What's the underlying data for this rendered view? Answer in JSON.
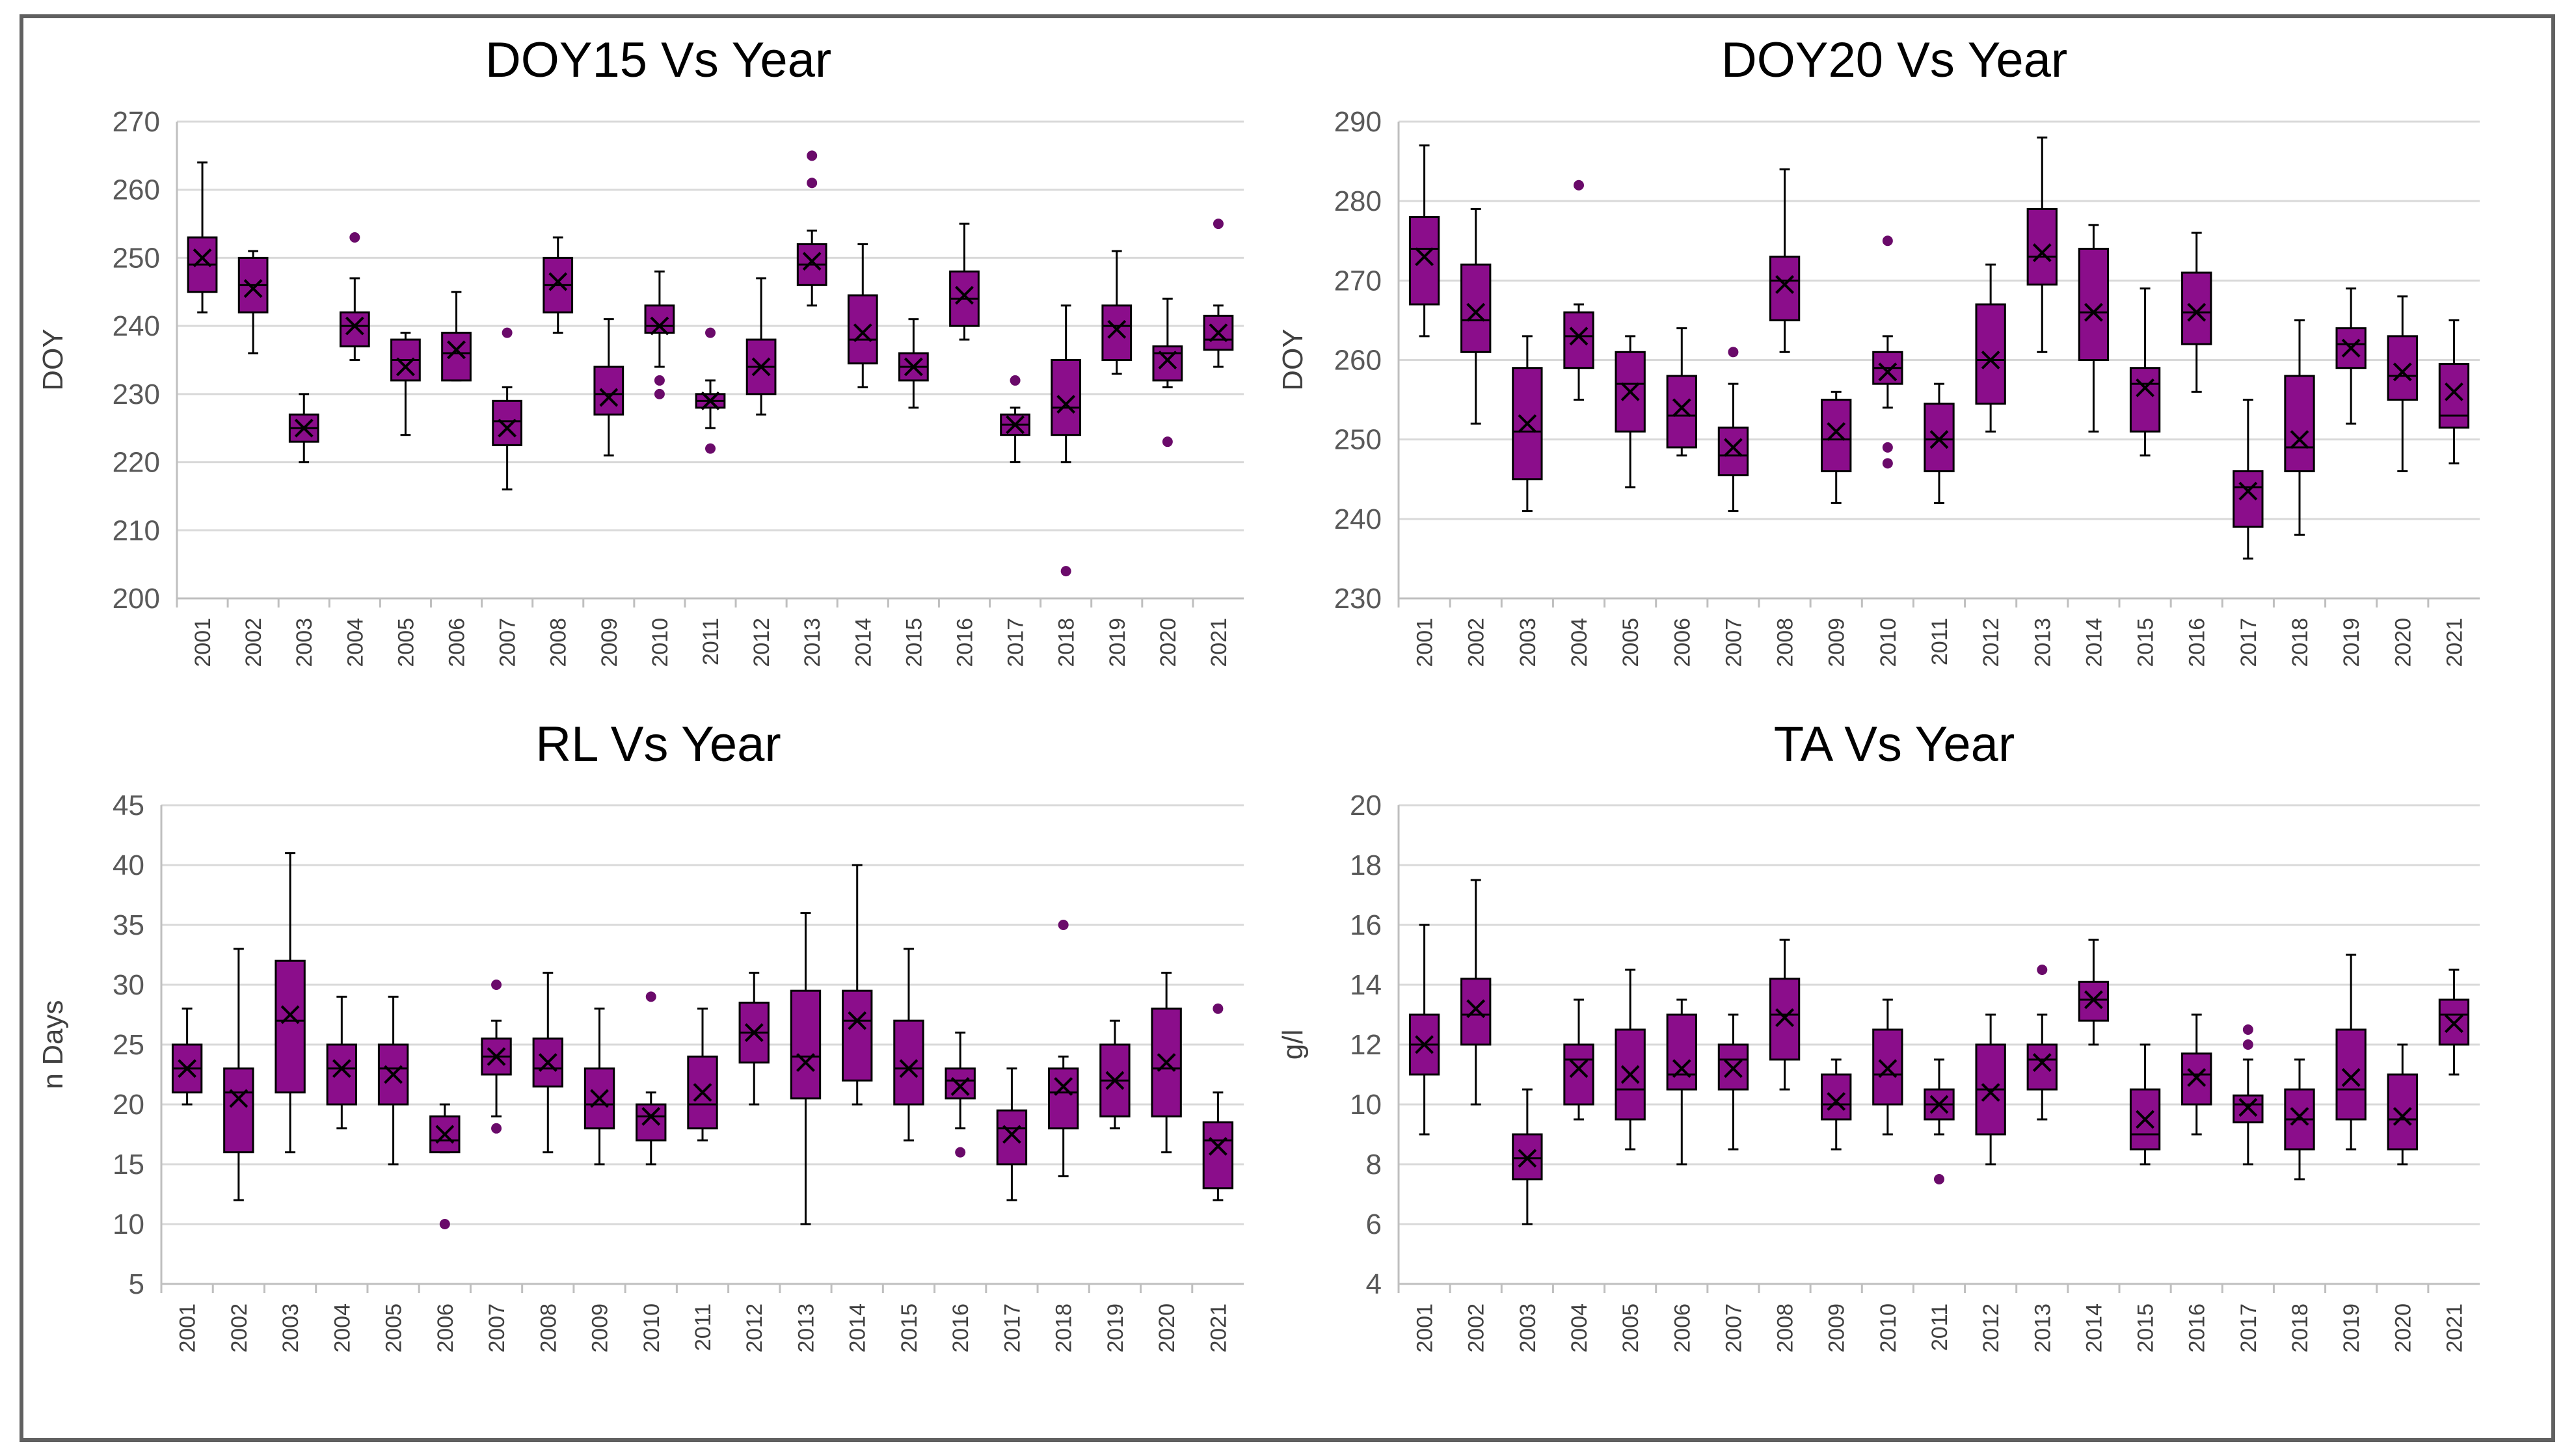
{
  "chart_data": [
    {
      "type": "box",
      "title": "DOY15 Vs Year",
      "xlabel": "",
      "ylabel": "DOY",
      "ylim": [
        200,
        270
      ],
      "yticks": [
        200,
        210,
        220,
        230,
        240,
        250,
        260,
        270
      ],
      "grid": true,
      "color": "#8b0d8b",
      "categories": [
        "2001",
        "2002",
        "2003",
        "2004",
        "2005",
        "2006",
        "2007",
        "2008",
        "2009",
        "2010",
        "2011",
        "2012",
        "2013",
        "2014",
        "2015",
        "2016",
        "2017",
        "2018",
        "2019",
        "2020",
        "2021"
      ],
      "boxes": [
        {
          "min": 242,
          "q1": 245,
          "median": 249,
          "q3": 253,
          "max": 264,
          "mean": 250,
          "outliers": []
        },
        {
          "min": 236,
          "q1": 242,
          "median": 246,
          "q3": 250,
          "max": 251,
          "mean": 245.5,
          "outliers": []
        },
        {
          "min": 220,
          "q1": 223,
          "median": 225,
          "q3": 227,
          "max": 230,
          "mean": 225,
          "outliers": []
        },
        {
          "min": 235,
          "q1": 237,
          "median": 240,
          "q3": 242,
          "max": 247,
          "mean": 240,
          "outliers": [
            253
          ]
        },
        {
          "min": 224,
          "q1": 232,
          "median": 235,
          "q3": 238,
          "max": 239,
          "mean": 234,
          "outliers": []
        },
        {
          "min": 232,
          "q1": 232,
          "median": 236,
          "q3": 239,
          "max": 245,
          "mean": 236.5,
          "outliers": []
        },
        {
          "min": 216,
          "q1": 222.5,
          "median": 226,
          "q3": 229,
          "max": 231,
          "mean": 225,
          "outliers": [
            239
          ]
        },
        {
          "min": 239,
          "q1": 242,
          "median": 246,
          "q3": 250,
          "max": 253,
          "mean": 246.5,
          "outliers": []
        },
        {
          "min": 221,
          "q1": 227,
          "median": 230,
          "q3": 234,
          "max": 241,
          "mean": 229.5,
          "outliers": []
        },
        {
          "min": 234,
          "q1": 239,
          "median": 240,
          "q3": 243,
          "max": 248,
          "mean": 240,
          "outliers": [
            232,
            230
          ]
        },
        {
          "min": 225,
          "q1": 228,
          "median": 229,
          "q3": 230,
          "max": 232,
          "mean": 229,
          "outliers": [
            239,
            222
          ]
        },
        {
          "min": 227,
          "q1": 230,
          "median": 234,
          "q3": 238,
          "max": 247,
          "mean": 234,
          "outliers": []
        },
        {
          "min": 243,
          "q1": 246,
          "median": 249,
          "q3": 252,
          "max": 254,
          "mean": 249.5,
          "outliers": [
            265,
            261
          ]
        },
        {
          "min": 231,
          "q1": 234.5,
          "median": 238,
          "q3": 244.5,
          "max": 252,
          "mean": 239,
          "outliers": []
        },
        {
          "min": 228,
          "q1": 232,
          "median": 234,
          "q3": 236,
          "max": 241,
          "mean": 234,
          "outliers": []
        },
        {
          "min": 238,
          "q1": 240,
          "median": 244,
          "q3": 248,
          "max": 255,
          "mean": 244.5,
          "outliers": []
        },
        {
          "min": 220,
          "q1": 224,
          "median": 225.5,
          "q3": 227,
          "max": 228,
          "mean": 225.5,
          "outliers": [
            232
          ]
        },
        {
          "min": 220,
          "q1": 224,
          "median": 228,
          "q3": 235,
          "max": 243,
          "mean": 228.5,
          "outliers": [
            204
          ]
        },
        {
          "min": 233,
          "q1": 235,
          "median": 240,
          "q3": 243,
          "max": 251,
          "mean": 239.5,
          "outliers": []
        },
        {
          "min": 231,
          "q1": 232,
          "median": 236,
          "q3": 237,
          "max": 244,
          "mean": 235,
          "outliers": [
            223
          ]
        },
        {
          "min": 234,
          "q1": 236.5,
          "median": 238,
          "q3": 241.5,
          "max": 243,
          "mean": 239,
          "outliers": [
            255
          ]
        }
      ]
    },
    {
      "type": "box",
      "title": "DOY20 Vs Year",
      "xlabel": "",
      "ylabel": "DOY",
      "ylim": [
        230,
        290
      ],
      "yticks": [
        230,
        240,
        250,
        260,
        270,
        280,
        290
      ],
      "grid": true,
      "color": "#8b0d8b",
      "categories": [
        "2001",
        "2002",
        "2003",
        "2004",
        "2005",
        "2006",
        "2007",
        "2008",
        "2009",
        "2010",
        "2011",
        "2012",
        "2013",
        "2014",
        "2015",
        "2016",
        "2017",
        "2018",
        "2019",
        "2020",
        "2021"
      ],
      "boxes": [
        {
          "min": 263,
          "q1": 267,
          "median": 274,
          "q3": 278,
          "max": 287,
          "mean": 273,
          "outliers": []
        },
        {
          "min": 252,
          "q1": 261,
          "median": 265,
          "q3": 272,
          "max": 279,
          "mean": 266,
          "outliers": []
        },
        {
          "min": 241,
          "q1": 245,
          "median": 251,
          "q3": 259,
          "max": 263,
          "mean": 252,
          "outliers": []
        },
        {
          "min": 255,
          "q1": 259,
          "median": 263,
          "q3": 266,
          "max": 267,
          "mean": 263,
          "outliers": [
            282
          ]
        },
        {
          "min": 244,
          "q1": 251,
          "median": 257,
          "q3": 261,
          "max": 263,
          "mean": 256,
          "outliers": []
        },
        {
          "min": 248,
          "q1": 249,
          "median": 253,
          "q3": 258,
          "max": 264,
          "mean": 254,
          "outliers": []
        },
        {
          "min": 241,
          "q1": 245.5,
          "median": 248,
          "q3": 251.5,
          "max": 257,
          "mean": 249,
          "outliers": [
            261
          ]
        },
        {
          "min": 261,
          "q1": 265,
          "median": 270,
          "q3": 273,
          "max": 284,
          "mean": 269.5,
          "outliers": []
        },
        {
          "min": 242,
          "q1": 246,
          "median": 250,
          "q3": 255,
          "max": 256,
          "mean": 251,
          "outliers": []
        },
        {
          "min": 254,
          "q1": 257,
          "median": 259,
          "q3": 261,
          "max": 263,
          "mean": 258.5,
          "outliers": [
            275,
            249,
            247
          ]
        },
        {
          "min": 242,
          "q1": 246,
          "median": 250,
          "q3": 254.5,
          "max": 257,
          "mean": 250,
          "outliers": []
        },
        {
          "min": 251,
          "q1": 254.5,
          "median": 260,
          "q3": 267,
          "max": 272,
          "mean": 260,
          "outliers": []
        },
        {
          "min": 261,
          "q1": 269.5,
          "median": 273,
          "q3": 279,
          "max": 288,
          "mean": 273.5,
          "outliers": []
        },
        {
          "min": 251,
          "q1": 260,
          "median": 266,
          "q3": 274,
          "max": 277,
          "mean": 266,
          "outliers": []
        },
        {
          "min": 248,
          "q1": 251,
          "median": 257,
          "q3": 259,
          "max": 269,
          "mean": 256.5,
          "outliers": []
        },
        {
          "min": 256,
          "q1": 262,
          "median": 266,
          "q3": 271,
          "max": 276,
          "mean": 266,
          "outliers": []
        },
        {
          "min": 235,
          "q1": 239,
          "median": 244,
          "q3": 246,
          "max": 255,
          "mean": 243.5,
          "outliers": []
        },
        {
          "min": 238,
          "q1": 246,
          "median": 249,
          "q3": 258,
          "max": 265,
          "mean": 250,
          "outliers": []
        },
        {
          "min": 252,
          "q1": 259,
          "median": 262,
          "q3": 264,
          "max": 269,
          "mean": 261.5,
          "outliers": []
        },
        {
          "min": 246,
          "q1": 255,
          "median": 258,
          "q3": 263,
          "max": 268,
          "mean": 258.5,
          "outliers": []
        },
        {
          "min": 247,
          "q1": 251.5,
          "median": 253,
          "q3": 259.5,
          "max": 265,
          "mean": 256,
          "outliers": []
        }
      ]
    },
    {
      "type": "box",
      "title": "RL Vs Year",
      "xlabel": "",
      "ylabel": "n Days",
      "ylim": [
        5,
        45
      ],
      "yticks": [
        5,
        10,
        15,
        20,
        25,
        30,
        35,
        40,
        45
      ],
      "grid": true,
      "color": "#8b0d8b",
      "categories": [
        "2001",
        "2002",
        "2003",
        "2004",
        "2005",
        "2006",
        "2007",
        "2008",
        "2009",
        "2010",
        "2011",
        "2012",
        "2013",
        "2014",
        "2015",
        "2016",
        "2017",
        "2018",
        "2019",
        "2020",
        "2021"
      ],
      "boxes": [
        {
          "min": 20,
          "q1": 21,
          "median": 23,
          "q3": 25,
          "max": 28,
          "mean": 23,
          "outliers": []
        },
        {
          "min": 12,
          "q1": 16,
          "median": 21,
          "q3": 23,
          "max": 33,
          "mean": 20.5,
          "outliers": []
        },
        {
          "min": 16,
          "q1": 21,
          "median": 27,
          "q3": 32,
          "max": 41,
          "mean": 27.5,
          "outliers": []
        },
        {
          "min": 18,
          "q1": 20,
          "median": 23,
          "q3": 25,
          "max": 29,
          "mean": 23,
          "outliers": []
        },
        {
          "min": 15,
          "q1": 20,
          "median": 23,
          "q3": 25,
          "max": 29,
          "mean": 22.5,
          "outliers": []
        },
        {
          "min": 16,
          "q1": 16,
          "median": 17,
          "q3": 19,
          "max": 20,
          "mean": 17.5,
          "outliers": [
            10
          ]
        },
        {
          "min": 19,
          "q1": 22.5,
          "median": 24,
          "q3": 25.5,
          "max": 27,
          "mean": 24,
          "outliers": [
            30,
            18
          ]
        },
        {
          "min": 16,
          "q1": 21.5,
          "median": 23,
          "q3": 25.5,
          "max": 31,
          "mean": 23.5,
          "outliers": []
        },
        {
          "min": 15,
          "q1": 18,
          "median": 20,
          "q3": 23,
          "max": 28,
          "mean": 20.5,
          "outliers": []
        },
        {
          "min": 15,
          "q1": 17,
          "median": 19,
          "q3": 20,
          "max": 21,
          "mean": 19,
          "outliers": [
            29
          ]
        },
        {
          "min": 17,
          "q1": 18,
          "median": 20,
          "q3": 24,
          "max": 28,
          "mean": 21,
          "outliers": []
        },
        {
          "min": 20,
          "q1": 23.5,
          "median": 26,
          "q3": 28.5,
          "max": 31,
          "mean": 26,
          "outliers": []
        },
        {
          "min": 10,
          "q1": 20.5,
          "median": 24,
          "q3": 29.5,
          "max": 36,
          "mean": 23.5,
          "outliers": []
        },
        {
          "min": 20,
          "q1": 22,
          "median": 27,
          "q3": 29.5,
          "max": 40,
          "mean": 27,
          "outliers": []
        },
        {
          "min": 17,
          "q1": 20,
          "median": 23,
          "q3": 27,
          "max": 33,
          "mean": 23,
          "outliers": []
        },
        {
          "min": 18,
          "q1": 20.5,
          "median": 22,
          "q3": 23,
          "max": 26,
          "mean": 21.5,
          "outliers": [
            16
          ]
        },
        {
          "min": 12,
          "q1": 15,
          "median": 18,
          "q3": 19.5,
          "max": 23,
          "mean": 17.5,
          "outliers": []
        },
        {
          "min": 14,
          "q1": 18,
          "median": 21,
          "q3": 23,
          "max": 24,
          "mean": 21.5,
          "outliers": [
            35
          ]
        },
        {
          "min": 18,
          "q1": 19,
          "median": 22,
          "q3": 25,
          "max": 27,
          "mean": 22,
          "outliers": []
        },
        {
          "min": 16,
          "q1": 19,
          "median": 23,
          "q3": 28,
          "max": 31,
          "mean": 23.5,
          "outliers": []
        },
        {
          "min": 12,
          "q1": 13,
          "median": 17,
          "q3": 18.5,
          "max": 21,
          "mean": 16.5,
          "outliers": [
            28
          ]
        }
      ]
    },
    {
      "type": "box",
      "title": "TA Vs Year",
      "xlabel": "",
      "ylabel": "g/l",
      "ylim": [
        4,
        20
      ],
      "yticks": [
        4,
        6,
        8,
        10,
        12,
        14,
        16,
        18,
        20
      ],
      "grid": true,
      "color": "#8b0d8b",
      "categories": [
        "2001",
        "2002",
        "2003",
        "2004",
        "2005",
        "2006",
        "2007",
        "2008",
        "2009",
        "2010",
        "2011",
        "2012",
        "2013",
        "2014",
        "2015",
        "2016",
        "2017",
        "2018",
        "2019",
        "2020",
        "2021"
      ],
      "boxes": [
        {
          "min": 9,
          "q1": 11,
          "median": 12,
          "q3": 13,
          "max": 16,
          "mean": 12,
          "outliers": []
        },
        {
          "min": 10,
          "q1": 12,
          "median": 13,
          "q3": 14.2,
          "max": 17.5,
          "mean": 13.2,
          "outliers": []
        },
        {
          "min": 6,
          "q1": 7.5,
          "median": 8.2,
          "q3": 9,
          "max": 10.5,
          "mean": 8.2,
          "outliers": []
        },
        {
          "min": 9.5,
          "q1": 10,
          "median": 11.5,
          "q3": 12,
          "max": 13.5,
          "mean": 11.2,
          "outliers": []
        },
        {
          "min": 8.5,
          "q1": 9.5,
          "median": 10.5,
          "q3": 12.5,
          "max": 14.5,
          "mean": 11,
          "outliers": []
        },
        {
          "min": 8,
          "q1": 10.5,
          "median": 11,
          "q3": 13,
          "max": 13.5,
          "mean": 11.2,
          "outliers": []
        },
        {
          "min": 8.5,
          "q1": 10.5,
          "median": 11.5,
          "q3": 12,
          "max": 13,
          "mean": 11.2,
          "outliers": []
        },
        {
          "min": 10.5,
          "q1": 11.5,
          "median": 13,
          "q3": 14.2,
          "max": 15.5,
          "mean": 12.9,
          "outliers": []
        },
        {
          "min": 8.5,
          "q1": 9.5,
          "median": 10,
          "q3": 11,
          "max": 11.5,
          "mean": 10.1,
          "outliers": []
        },
        {
          "min": 9,
          "q1": 10,
          "median": 11,
          "q3": 12.5,
          "max": 13.5,
          "mean": 11.2,
          "outliers": []
        },
        {
          "min": 9,
          "q1": 9.5,
          "median": 10,
          "q3": 10.5,
          "max": 11.5,
          "mean": 10,
          "outliers": [
            7.5
          ]
        },
        {
          "min": 8,
          "q1": 9,
          "median": 10.5,
          "q3": 12,
          "max": 13,
          "mean": 10.4,
          "outliers": []
        },
        {
          "min": 9.5,
          "q1": 10.5,
          "median": 11.5,
          "q3": 12,
          "max": 13,
          "mean": 11.4,
          "outliers": [
            14.5
          ]
        },
        {
          "min": 12,
          "q1": 12.8,
          "median": 13.5,
          "q3": 14.1,
          "max": 15.5,
          "mean": 13.5,
          "outliers": []
        },
        {
          "min": 8,
          "q1": 8.5,
          "median": 9,
          "q3": 10.5,
          "max": 12,
          "mean": 9.5,
          "outliers": []
        },
        {
          "min": 9,
          "q1": 10,
          "median": 11,
          "q3": 11.7,
          "max": 13,
          "mean": 10.9,
          "outliers": []
        },
        {
          "min": 8,
          "q1": 9.4,
          "median": 10,
          "q3": 10.3,
          "max": 11.5,
          "mean": 9.9,
          "outliers": [
            12.5,
            12
          ]
        },
        {
          "min": 7.5,
          "q1": 8.5,
          "median": 9.5,
          "q3": 10.5,
          "max": 11.5,
          "mean": 9.6,
          "outliers": []
        },
        {
          "min": 8.5,
          "q1": 9.5,
          "median": 10.5,
          "q3": 12.5,
          "max": 15,
          "mean": 10.9,
          "outliers": []
        },
        {
          "min": 8,
          "q1": 8.5,
          "median": 9.5,
          "q3": 11,
          "max": 12,
          "mean": 9.6,
          "outliers": []
        },
        {
          "min": 11,
          "q1": 12,
          "median": 13,
          "q3": 13.5,
          "max": 14.5,
          "mean": 12.7,
          "outliers": []
        }
      ]
    }
  ]
}
